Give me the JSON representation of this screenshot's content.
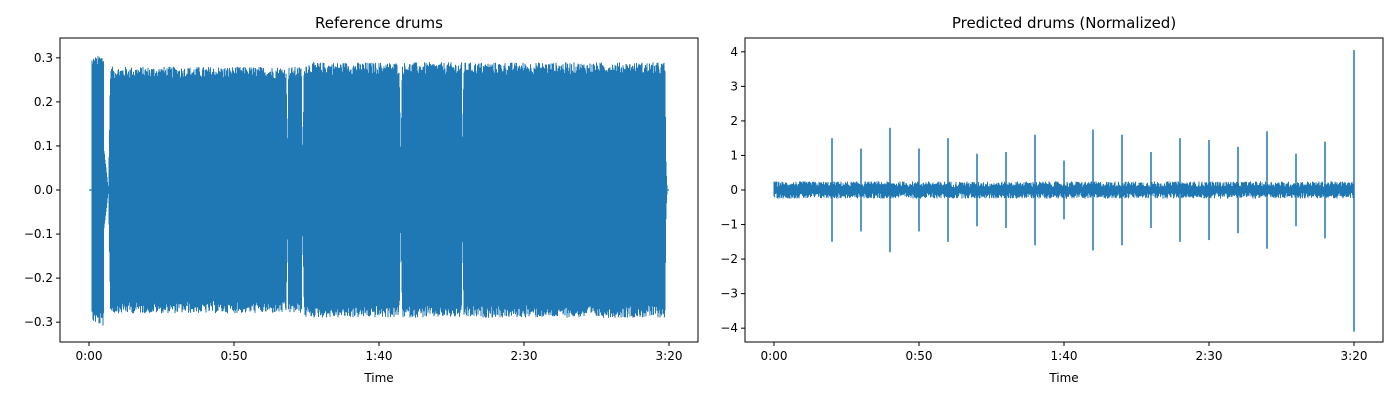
{
  "chart_data": [
    {
      "type": "line",
      "title": "Reference drums",
      "xlabel": "Time",
      "ylabel": "",
      "xlim": [
        -10,
        210
      ],
      "ylim": [
        -0.345,
        0.345
      ],
      "x_ticks": [
        0,
        50,
        100,
        150,
        200
      ],
      "x_tick_labels": [
        "0:00",
        "0:50",
        "1:40",
        "2:30",
        "3:20"
      ],
      "y_ticks": [
        0.3,
        0.2,
        0.1,
        0.0,
        -0.1,
        -0.2,
        -0.3
      ],
      "y_tick_labels": [
        "0.3",
        "0.2",
        "0.1",
        "0.0",
        "−0.1",
        "−0.2",
        "−0.3"
      ],
      "grid": false,
      "line_color": "#1f77b4",
      "series": [
        {
          "envelope_time_s": [
            0,
            0.9,
            1.0,
            5.0,
            5.1,
            6.7,
            7.4,
            68.0,
            68.4,
            68.8,
            73.3,
            73.6,
            74.2,
            107.0,
            107.5,
            108.0,
            128.5,
            128.8,
            129.2,
            198.6,
            199.0,
            199.4,
            200
          ],
          "envelope_amplitude": [
            0.0,
            0.0,
            0.3,
            0.31,
            0.1,
            0.0,
            0.28,
            0.28,
            0.05,
            0.28,
            0.28,
            0.02,
            0.29,
            0.29,
            0.06,
            0.29,
            0.29,
            0.01,
            0.29,
            0.29,
            0.05,
            0.0,
            0.0
          ]
        }
      ]
    },
    {
      "type": "line",
      "title": "Predicted drums (Normalized)",
      "xlabel": "Time",
      "ylabel": "",
      "xlim": [
        -10,
        210
      ],
      "ylim": [
        -4.4,
        4.4
      ],
      "x_ticks": [
        0,
        50,
        100,
        150,
        200
      ],
      "x_tick_labels": [
        "0:00",
        "0:50",
        "1:40",
        "2:30",
        "3:20"
      ],
      "y_ticks": [
        4,
        3,
        2,
        1,
        0,
        -1,
        -2,
        -3,
        -4
      ],
      "y_tick_labels": [
        "4",
        "3",
        "2",
        "1",
        "0",
        "−1",
        "−2",
        "−3",
        "−4"
      ],
      "grid": false,
      "line_color": "#1f77b4",
      "series": [
        {
          "noise_band": [
            -0.25,
            0.25
          ],
          "spikes": [
            {
              "t": 20.0,
              "high": 1.5,
              "low": -1.5
            },
            {
              "t": 30.0,
              "high": 1.2,
              "low": -1.2
            },
            {
              "t": 40.0,
              "high": 1.8,
              "low": -1.8
            },
            {
              "t": 50.0,
              "high": 1.2,
              "low": -1.2
            },
            {
              "t": 60.0,
              "high": 1.5,
              "low": -1.5
            },
            {
              "t": 70.0,
              "high": 1.05,
              "low": -1.05
            },
            {
              "t": 80.0,
              "high": 1.1,
              "low": -1.1
            },
            {
              "t": 90.0,
              "high": 1.6,
              "low": -1.6
            },
            {
              "t": 100.0,
              "high": 0.85,
              "low": -0.85
            },
            {
              "t": 110.0,
              "high": 1.75,
              "low": -1.75
            },
            {
              "t": 120.0,
              "high": 1.6,
              "low": -1.6
            },
            {
              "t": 130.0,
              "high": 1.1,
              "low": -1.1
            },
            {
              "t": 140.0,
              "high": 1.5,
              "low": -1.5
            },
            {
              "t": 150.0,
              "high": 1.45,
              "low": -1.45
            },
            {
              "t": 160.0,
              "high": 1.25,
              "low": -1.25
            },
            {
              "t": 170.0,
              "high": 1.7,
              "low": -1.7
            },
            {
              "t": 180.0,
              "high": 1.05,
              "low": -1.05
            },
            {
              "t": 190.0,
              "high": 1.4,
              "low": -1.4
            },
            {
              "t": 200.0,
              "high": 4.05,
              "low": -4.1
            }
          ]
        }
      ]
    }
  ]
}
